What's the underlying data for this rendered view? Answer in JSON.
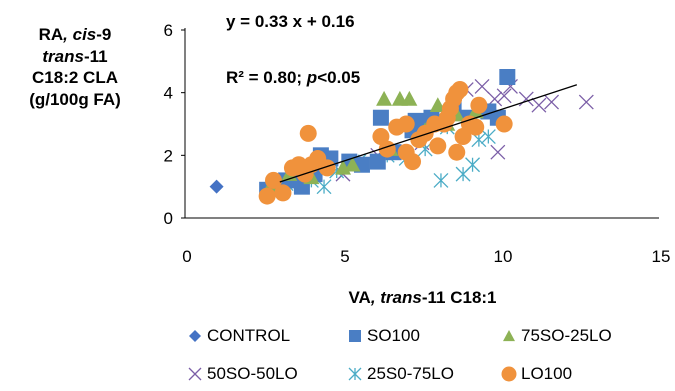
{
  "chart_data": {
    "type": "scatter",
    "ylabel_lines": [
      {
        "parts": [
          {
            "text": "RA",
            "italic": false
          },
          {
            "text": ", cis",
            "italic": true
          },
          {
            "text": "-9",
            "italic": false
          }
        ]
      },
      {
        "parts": [
          {
            "text": "trans",
            "italic": true
          },
          {
            "text": "-11",
            "italic": false
          }
        ]
      },
      {
        "parts": [
          {
            "text": "C18:2 CLA",
            "italic": false
          }
        ]
      },
      {
        "parts": [
          {
            "text": "(g/100g FA)",
            "italic": false
          }
        ]
      }
    ],
    "xlabel_parts": [
      {
        "text": "VA",
        "italic": false
      },
      {
        "text": ", trans",
        "italic": true
      },
      {
        "text": "-11 C18:1",
        "italic": false
      }
    ],
    "xlim": [
      0,
      15
    ],
    "ylim": [
      0,
      6
    ],
    "xticks": [
      "0",
      "5",
      "10",
      "15"
    ],
    "yticks": [
      "0",
      "2",
      "4",
      "6"
    ],
    "grid": false,
    "legend_position": "bottom",
    "equation": "y = 0.33 x + 0.16",
    "r2_text": "R² = 0.80;",
    "p_label": "p",
    "p_value": "<0.05",
    "trendline": {
      "slope": 0.33,
      "intercept": 0.16,
      "x_range": [
        3.0,
        12.4
      ],
      "color": "#000000"
    },
    "series": [
      {
        "name": "CONTROL",
        "marker": "diamond",
        "color": "#4472C4",
        "points": [
          [
            1.0,
            1.0
          ]
        ]
      },
      {
        "name": "SO100",
        "marker": "square",
        "color": "#4A7EC4",
        "points": [
          [
            2.6,
            0.9
          ],
          [
            2.9,
            1.0
          ],
          [
            3.2,
            1.2
          ],
          [
            3.5,
            1.3
          ],
          [
            3.7,
            1.0
          ],
          [
            4.1,
            1.4
          ],
          [
            4.3,
            2.0
          ],
          [
            4.6,
            1.9
          ],
          [
            5.2,
            1.8
          ],
          [
            5.6,
            1.7
          ],
          [
            6.1,
            1.8
          ],
          [
            6.2,
            3.2
          ],
          [
            6.6,
            2.1
          ],
          [
            7.2,
            2.8
          ],
          [
            7.3,
            3.1
          ],
          [
            7.8,
            3.2
          ],
          [
            8.5,
            3.5
          ],
          [
            9.0,
            3.2
          ],
          [
            9.6,
            3.4
          ],
          [
            9.9,
            3.2
          ],
          [
            10.2,
            4.5
          ]
        ]
      },
      {
        "name": "75SO-25LO",
        "marker": "triangle",
        "color": "#8DB255",
        "points": [
          [
            2.7,
            1.0
          ],
          [
            3.3,
            1.4
          ],
          [
            4.0,
            1.3
          ],
          [
            5.0,
            1.6
          ],
          [
            5.3,
            1.7
          ],
          [
            6.3,
            3.8
          ],
          [
            6.5,
            2.2
          ],
          [
            6.8,
            3.8
          ],
          [
            7.1,
            3.8
          ],
          [
            7.6,
            2.8
          ],
          [
            8.0,
            3.6
          ],
          [
            8.3,
            3.0
          ],
          [
            8.6,
            3.3
          ],
          [
            8.8,
            2.7
          ],
          [
            9.2,
            3.4
          ]
        ]
      },
      {
        "name": "50SO-50LO",
        "marker": "x",
        "color": "#7B5EA7",
        "points": [
          [
            3.0,
            1.1
          ],
          [
            3.8,
            1.5
          ],
          [
            5.0,
            1.4
          ],
          [
            6.1,
            2.0
          ],
          [
            7.5,
            2.4
          ],
          [
            8.2,
            3.1
          ],
          [
            8.9,
            4.1
          ],
          [
            9.4,
            4.2
          ],
          [
            9.8,
            3.8
          ],
          [
            9.9,
            2.1
          ],
          [
            10.1,
            3.9
          ],
          [
            10.3,
            4.2
          ],
          [
            10.8,
            3.8
          ],
          [
            11.2,
            3.6
          ],
          [
            11.6,
            3.7
          ],
          [
            12.7,
            3.7
          ]
        ]
      },
      {
        "name": "25S0-75LO",
        "marker": "asterisk",
        "color": "#4BACC6",
        "points": [
          [
            2.8,
            0.9
          ],
          [
            3.2,
            1.1
          ],
          [
            4.0,
            1.2
          ],
          [
            4.4,
            1.0
          ],
          [
            4.8,
            1.5
          ],
          [
            5.5,
            1.8
          ],
          [
            6.4,
            2.0
          ],
          [
            7.0,
            1.9
          ],
          [
            7.6,
            2.2
          ],
          [
            8.1,
            1.2
          ],
          [
            8.3,
            2.9
          ],
          [
            8.8,
            1.4
          ],
          [
            9.1,
            1.7
          ],
          [
            9.3,
            2.5
          ],
          [
            9.6,
            2.6
          ]
        ]
      },
      {
        "name": "LO100",
        "marker": "circle",
        "color": "#F0923C",
        "points": [
          [
            2.6,
            0.7
          ],
          [
            2.8,
            1.2
          ],
          [
            3.1,
            0.8
          ],
          [
            3.4,
            1.6
          ],
          [
            3.6,
            1.7
          ],
          [
            3.8,
            1.4
          ],
          [
            3.9,
            2.7
          ],
          [
            4.0,
            1.7
          ],
          [
            4.2,
            1.9
          ],
          [
            4.5,
            1.6
          ],
          [
            6.2,
            2.6
          ],
          [
            6.4,
            2.2
          ],
          [
            6.7,
            2.9
          ],
          [
            7.0,
            2.1
          ],
          [
            7.0,
            3.0
          ],
          [
            7.2,
            1.8
          ],
          [
            7.4,
            2.5
          ],
          [
            7.6,
            2.7
          ],
          [
            7.9,
            3.0
          ],
          [
            8.0,
            2.3
          ],
          [
            8.2,
            3.0
          ],
          [
            8.3,
            3.2
          ],
          [
            8.4,
            3.5
          ],
          [
            8.5,
            3.8
          ],
          [
            8.6,
            4.0
          ],
          [
            8.6,
            2.1
          ],
          [
            8.7,
            4.1
          ],
          [
            8.8,
            2.6
          ],
          [
            9.0,
            3.0
          ],
          [
            9.2,
            2.9
          ],
          [
            9.3,
            3.6
          ],
          [
            10.1,
            3.0
          ]
        ]
      }
    ]
  }
}
